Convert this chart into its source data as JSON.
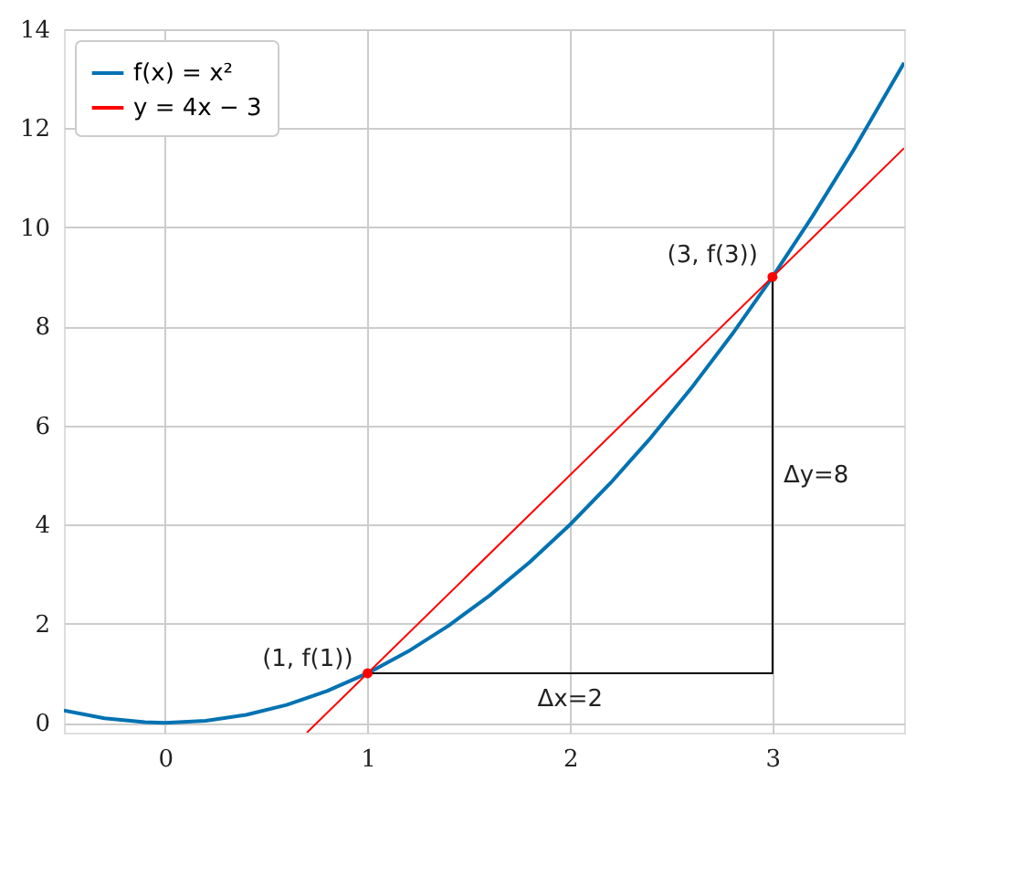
{
  "chart_data": {
    "type": "line",
    "xlim": [
      -0.5,
      3.65
    ],
    "ylim": [
      -0.2,
      14
    ],
    "xticks": [
      0,
      1,
      2,
      3
    ],
    "yticks": [
      0,
      2,
      4,
      6,
      8,
      10,
      12,
      14
    ],
    "grid": true,
    "legend": "top left",
    "series": [
      {
        "name": "f(x) = x²",
        "color": "#0072b2",
        "x": [
          -0.5,
          -0.3,
          -0.1,
          0,
          0.2,
          0.4,
          0.6,
          0.8,
          1.0,
          1.2,
          1.4,
          1.6,
          1.8,
          2.0,
          2.2,
          2.4,
          2.6,
          2.8,
          3.0,
          3.2,
          3.4,
          3.65
        ],
        "values": [
          0.25,
          0.09,
          0.01,
          0,
          0.04,
          0.16,
          0.36,
          0.64,
          1.0,
          1.44,
          1.96,
          2.56,
          3.24,
          4.0,
          4.84,
          5.76,
          6.76,
          7.84,
          9.0,
          10.24,
          11.56,
          13.32
        ]
      },
      {
        "name": "y = 4x − 3",
        "color": "#ff0000",
        "x": [
          0.7,
          3.65
        ],
        "values": [
          -0.2,
          11.6
        ]
      },
      {
        "type": "line",
        "color": "#000000",
        "x": [
          1,
          3,
          3
        ],
        "values": [
          1,
          1,
          9
        ]
      },
      {
        "type": "scatter",
        "color": "#ff0000",
        "x": [
          1,
          3
        ],
        "values": [
          1,
          9
        ]
      }
    ],
    "annotations": [
      {
        "text": "(1, f(1))",
        "x": 1,
        "y": 1
      },
      {
        "text": "(3, f(3))",
        "x": 3,
        "y": 9
      },
      {
        "text": "Δx=2",
        "x": 2,
        "y": 1
      },
      {
        "text": "Δy=8",
        "x": 3,
        "y": 5
      }
    ]
  }
}
